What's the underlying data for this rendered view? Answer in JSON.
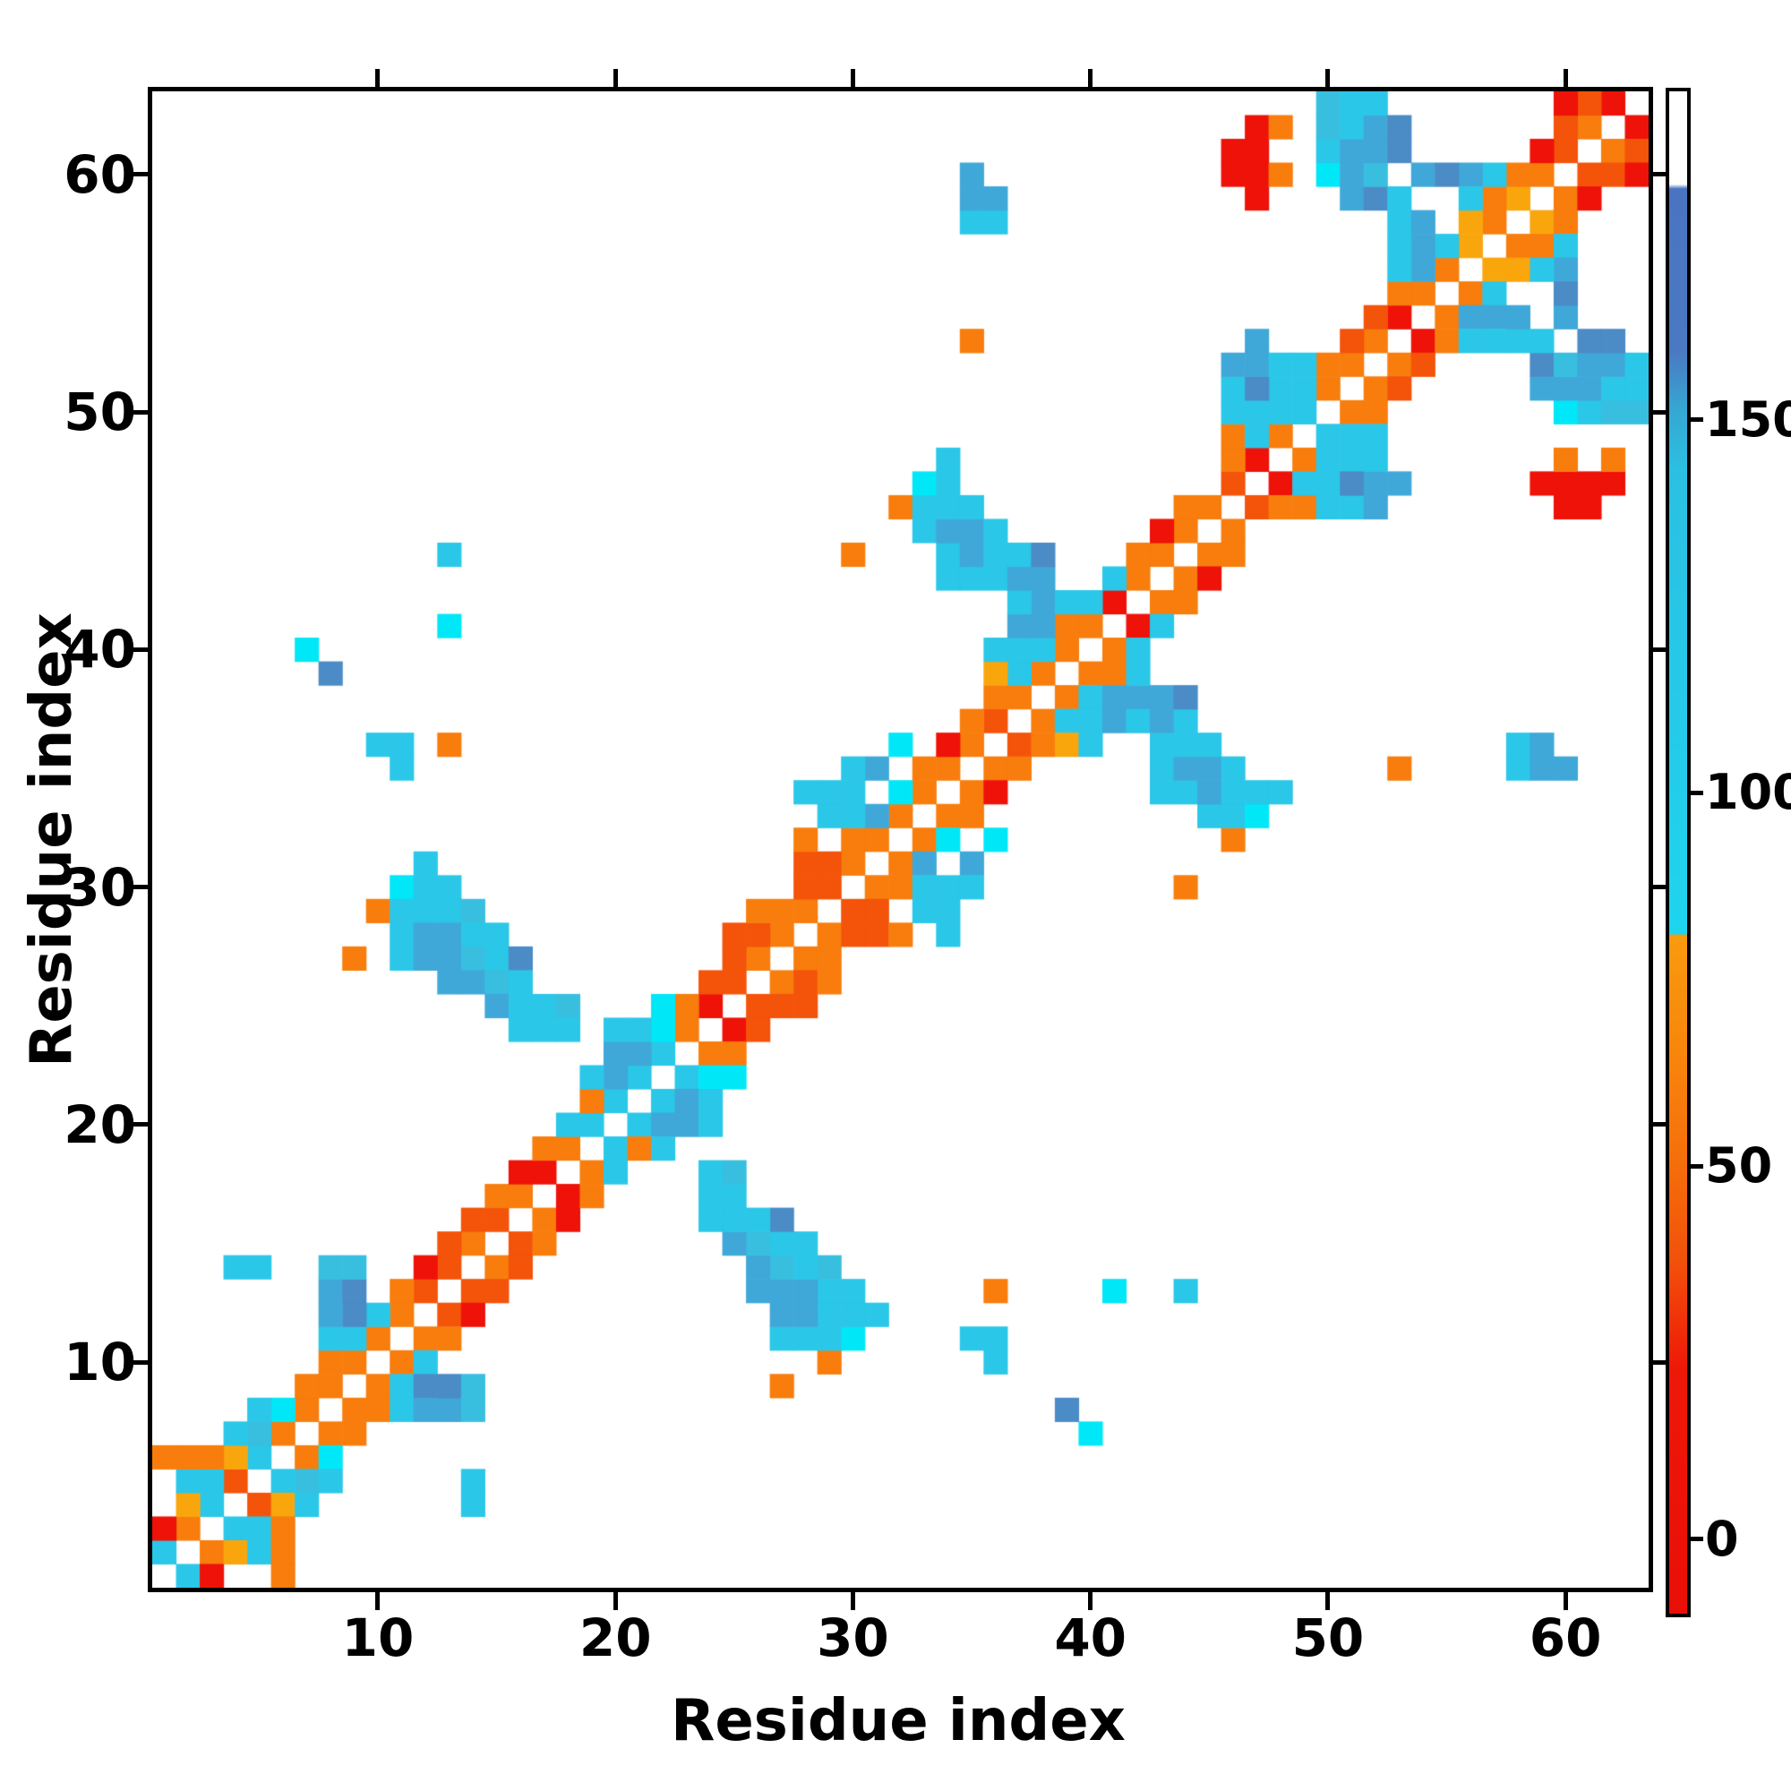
{
  "axes": {
    "xlabel": "Residue index",
    "ylabel": "Residue index",
    "x_ticks": [
      10,
      20,
      30,
      40,
      50,
      60
    ],
    "y_ticks": [
      10,
      20,
      30,
      40,
      50,
      60
    ],
    "residue_range": [
      1,
      63
    ]
  },
  "colorbar": {
    "ticks": [
      0,
      50,
      100,
      150
    ],
    "vmin": -10,
    "vmax": 194
  },
  "chart_data": {
    "type": "heatmap",
    "title": "",
    "xlabel": "Residue index",
    "ylabel": "Residue index",
    "n_residues": 63,
    "symmetric": true,
    "diagonal": "white",
    "legend_position": "right-colorbar",
    "colorbar_ticks": [
      0,
      50,
      100,
      150
    ],
    "palette": {
      "r": "#ee1208",
      "or": "#f4530a",
      "o": "#f87d0d",
      "a": "#f9a60d",
      "bc": "#00e8f8",
      "c": "#2ac7e8",
      "mc": "#38bfe0",
      "mb": "#3fa8d8",
      "sb": "#4b8bc6"
    },
    "class_values": {
      "r": 5,
      "or": 35,
      "o": 60,
      "a": 72,
      "bc": 85,
      "c": 95,
      "mc": 105,
      "mb": 125,
      "sb": 145
    },
    "cells": [
      [
        1,
        2,
        "c"
      ],
      [
        2,
        3,
        "o"
      ],
      [
        3,
        4,
        "c"
      ],
      [
        4,
        5,
        "or"
      ],
      [
        5,
        6,
        "c"
      ],
      [
        6,
        7,
        "o"
      ],
      [
        7,
        8,
        "o"
      ],
      [
        8,
        9,
        "o"
      ],
      [
        9,
        10,
        "o"
      ],
      [
        10,
        11,
        "o"
      ],
      [
        11,
        12,
        "o"
      ],
      [
        12,
        13,
        "or"
      ],
      [
        13,
        14,
        "or"
      ],
      [
        14,
        15,
        "o"
      ],
      [
        15,
        16,
        "or"
      ],
      [
        16,
        17,
        "o"
      ],
      [
        17,
        18,
        "r"
      ],
      [
        18,
        19,
        "o"
      ],
      [
        19,
        20,
        "c"
      ],
      [
        20,
        21,
        "c"
      ],
      [
        21,
        22,
        "c"
      ],
      [
        22,
        23,
        "c"
      ],
      [
        23,
        24,
        "o"
      ],
      [
        24,
        25,
        "r"
      ],
      [
        25,
        26,
        "or"
      ],
      [
        26,
        27,
        "o"
      ],
      [
        27,
        28,
        "o"
      ],
      [
        28,
        29,
        "o"
      ],
      [
        29,
        30,
        "or"
      ],
      [
        30,
        31,
        "o"
      ],
      [
        31,
        32,
        "o"
      ],
      [
        32,
        33,
        "o"
      ],
      [
        33,
        34,
        "o"
      ],
      [
        34,
        35,
        "o"
      ],
      [
        35,
        36,
        "o"
      ],
      [
        36,
        37,
        "or"
      ],
      [
        37,
        38,
        "o"
      ],
      [
        38,
        39,
        "o"
      ],
      [
        39,
        40,
        "o"
      ],
      [
        40,
        41,
        "o"
      ],
      [
        41,
        42,
        "r"
      ],
      [
        42,
        43,
        "o"
      ],
      [
        43,
        44,
        "o"
      ],
      [
        44,
        45,
        "o"
      ],
      [
        45,
        46,
        "o"
      ],
      [
        46,
        47,
        "or"
      ],
      [
        47,
        48,
        "r"
      ],
      [
        48,
        49,
        "o"
      ],
      [
        49,
        50,
        "c"
      ],
      [
        50,
        51,
        "o"
      ],
      [
        51,
        52,
        "o"
      ],
      [
        52,
        53,
        "o"
      ],
      [
        53,
        54,
        "r"
      ],
      [
        54,
        55,
        "o"
      ],
      [
        55,
        56,
        "o"
      ],
      [
        56,
        57,
        "a"
      ],
      [
        57,
        58,
        "o"
      ],
      [
        58,
        59,
        "a"
      ],
      [
        59,
        60,
        "o"
      ],
      [
        60,
        61,
        "or"
      ],
      [
        61,
        62,
        "o"
      ],
      [
        62,
        63,
        "r"
      ],
      [
        1,
        3,
        "r"
      ],
      [
        2,
        4,
        "a"
      ],
      [
        3,
        5,
        "c"
      ],
      [
        4,
        6,
        "a"
      ],
      [
        5,
        7,
        "mc"
      ],
      [
        6,
        8,
        "bc"
      ],
      [
        7,
        9,
        "o"
      ],
      [
        8,
        10,
        "o"
      ],
      [
        9,
        11,
        "c"
      ],
      [
        10,
        12,
        "c"
      ],
      [
        11,
        13,
        "o"
      ],
      [
        12,
        14,
        "r"
      ],
      [
        13,
        15,
        "or"
      ],
      [
        14,
        16,
        "or"
      ],
      [
        15,
        17,
        "o"
      ],
      [
        16,
        18,
        "r"
      ],
      [
        17,
        19,
        "o"
      ],
      [
        18,
        20,
        "c"
      ],
      [
        19,
        21,
        "o"
      ],
      [
        20,
        22,
        "mb"
      ],
      [
        21,
        23,
        "mb"
      ],
      [
        22,
        24,
        "bc"
      ],
      [
        23,
        25,
        "o"
      ],
      [
        24,
        26,
        "or"
      ],
      [
        25,
        27,
        "or"
      ],
      [
        26,
        28,
        "or"
      ],
      [
        27,
        29,
        "o"
      ],
      [
        28,
        30,
        "or"
      ],
      [
        29,
        31,
        "or"
      ],
      [
        30,
        32,
        "o"
      ],
      [
        31,
        33,
        "mb"
      ],
      [
        32,
        34,
        "bc"
      ],
      [
        33,
        35,
        "o"
      ],
      [
        34,
        36,
        "r"
      ],
      [
        35,
        37,
        "o"
      ],
      [
        36,
        38,
        "o"
      ],
      [
        37,
        39,
        "c"
      ],
      [
        38,
        40,
        "c"
      ],
      [
        39,
        41,
        "o"
      ],
      [
        40,
        42,
        "c"
      ],
      [
        41,
        43,
        "c"
      ],
      [
        42,
        44,
        "o"
      ],
      [
        43,
        45,
        "r"
      ],
      [
        44,
        46,
        "o"
      ],
      [
        46,
        48,
        "o"
      ],
      [
        48,
        50,
        "c"
      ],
      [
        49,
        51,
        "c"
      ],
      [
        50,
        52,
        "o"
      ],
      [
        51,
        53,
        "or"
      ],
      [
        52,
        54,
        "or"
      ],
      [
        53,
        55,
        "o"
      ],
      [
        54,
        56,
        "mb"
      ],
      [
        55,
        57,
        "c"
      ],
      [
        57,
        59,
        "o"
      ],
      [
        58,
        60,
        "o"
      ],
      [
        59,
        61,
        "r"
      ],
      [
        60,
        62,
        "or"
      ],
      [
        61,
        63,
        "or"
      ],
      [
        2,
        5,
        "c"
      ],
      [
        3,
        6,
        "o"
      ],
      [
        4,
        7,
        "c"
      ],
      [
        5,
        8,
        "c"
      ],
      [
        8,
        11,
        "c"
      ],
      [
        9,
        12,
        "sb"
      ],
      [
        19,
        22,
        "c"
      ],
      [
        20,
        23,
        "mb"
      ],
      [
        21,
        24,
        "c"
      ],
      [
        22,
        25,
        "bc"
      ],
      [
        25,
        28,
        "or"
      ],
      [
        26,
        29,
        "o"
      ],
      [
        28,
        31,
        "or"
      ],
      [
        36,
        39,
        "a"
      ],
      [
        37,
        40,
        "c"
      ],
      [
        38,
        41,
        "mb"
      ],
      [
        46,
        49,
        "o"
      ],
      [
        47,
        50,
        "c"
      ],
      [
        48,
        51,
        "c"
      ],
      [
        53,
        56,
        "c"
      ],
      [
        54,
        57,
        "mb"
      ],
      [
        57,
        60,
        "c"
      ],
      [
        60,
        63,
        "r"
      ],
      [
        2,
        6,
        "o"
      ],
      [
        20,
        24,
        "c"
      ],
      [
        28,
        32,
        "o"
      ],
      [
        30,
        34,
        "c"
      ],
      [
        31,
        35,
        "mb"
      ],
      [
        32,
        36,
        "bc"
      ],
      [
        36,
        40,
        "c"
      ],
      [
        37,
        41,
        "mb"
      ],
      [
        38,
        42,
        "mb"
      ],
      [
        56,
        60,
        "mb"
      ],
      [
        8,
        12,
        "mb"
      ],
      [
        8,
        13,
        "mb"
      ],
      [
        9,
        13,
        "sb"
      ],
      [
        8,
        14,
        "mc"
      ],
      [
        9,
        14,
        "mc"
      ],
      [
        12,
        31,
        "c"
      ],
      [
        11,
        30,
        "bc"
      ],
      [
        12,
        30,
        "c"
      ],
      [
        13,
        30,
        "c"
      ],
      [
        10,
        29,
        "o"
      ],
      [
        11,
        29,
        "c"
      ],
      [
        12,
        29,
        "c"
      ],
      [
        13,
        29,
        "c"
      ],
      [
        14,
        29,
        "mc"
      ],
      [
        11,
        28,
        "c"
      ],
      [
        12,
        28,
        "mb"
      ],
      [
        13,
        28,
        "mb"
      ],
      [
        14,
        28,
        "c"
      ],
      [
        15,
        28,
        "c"
      ],
      [
        11,
        27,
        "c"
      ],
      [
        12,
        27,
        "mb"
      ],
      [
        13,
        27,
        "mb"
      ],
      [
        14,
        27,
        "mc"
      ],
      [
        15,
        27,
        "c"
      ],
      [
        16,
        27,
        "sb"
      ],
      [
        13,
        26,
        "mb"
      ],
      [
        14,
        26,
        "mb"
      ],
      [
        15,
        26,
        "mc"
      ],
      [
        16,
        26,
        "c"
      ],
      [
        15,
        25,
        "mb"
      ],
      [
        16,
        25,
        "c"
      ],
      [
        17,
        25,
        "c"
      ],
      [
        18,
        25,
        "mc"
      ],
      [
        16,
        24,
        "c"
      ],
      [
        17,
        24,
        "c"
      ],
      [
        18,
        24,
        "c"
      ],
      [
        29,
        33,
        "c"
      ],
      [
        30,
        33,
        "c"
      ],
      [
        29,
        34,
        "c"
      ],
      [
        30,
        35,
        "c"
      ],
      [
        28,
        34,
        "c"
      ],
      [
        32,
        46,
        "o"
      ],
      [
        33,
        45,
        "c"
      ],
      [
        33,
        46,
        "c"
      ],
      [
        33,
        47,
        "bc"
      ],
      [
        34,
        43,
        "c"
      ],
      [
        34,
        44,
        "c"
      ],
      [
        34,
        45,
        "mb"
      ],
      [
        34,
        46,
        "c"
      ],
      [
        34,
        47,
        "c"
      ],
      [
        34,
        48,
        "c"
      ],
      [
        35,
        43,
        "c"
      ],
      [
        35,
        44,
        "mb"
      ],
      [
        35,
        45,
        "mb"
      ],
      [
        35,
        46,
        "c"
      ],
      [
        36,
        43,
        "c"
      ],
      [
        36,
        44,
        "c"
      ],
      [
        36,
        45,
        "c"
      ],
      [
        37,
        42,
        "c"
      ],
      [
        37,
        43,
        "mb"
      ],
      [
        37,
        44,
        "c"
      ],
      [
        38,
        43,
        "mb"
      ],
      [
        38,
        44,
        "sb"
      ],
      [
        39,
        42,
        "c"
      ],
      [
        30,
        44,
        "o"
      ],
      [
        46,
        50,
        "c"
      ],
      [
        46,
        51,
        "c"
      ],
      [
        46,
        52,
        "mb"
      ],
      [
        47,
        49,
        "c"
      ],
      [
        47,
        51,
        "sb"
      ],
      [
        47,
        52,
        "mb"
      ],
      [
        47,
        53,
        "mb"
      ],
      [
        48,
        52,
        "c"
      ],
      [
        49,
        52,
        "c"
      ],
      [
        50,
        60,
        "bc"
      ],
      [
        50,
        61,
        "c"
      ],
      [
        50,
        62,
        "mc"
      ],
      [
        50,
        63,
        "mc"
      ],
      [
        51,
        59,
        "mb"
      ],
      [
        51,
        60,
        "mb"
      ],
      [
        51,
        61,
        "mb"
      ],
      [
        51,
        62,
        "c"
      ],
      [
        51,
        63,
        "c"
      ],
      [
        52,
        59,
        "sb"
      ],
      [
        52,
        60,
        "mc"
      ],
      [
        52,
        61,
        "mb"
      ],
      [
        52,
        62,
        "mb"
      ],
      [
        52,
        63,
        "c"
      ],
      [
        53,
        57,
        "c"
      ],
      [
        53,
        58,
        "c"
      ],
      [
        53,
        59,
        "c"
      ],
      [
        53,
        61,
        "sb"
      ],
      [
        53,
        62,
        "sb"
      ],
      [
        54,
        58,
        "mb"
      ],
      [
        54,
        60,
        "mb"
      ],
      [
        55,
        60,
        "sb"
      ],
      [
        56,
        58,
        "a"
      ],
      [
        56,
        59,
        "c"
      ],
      [
        47,
        59,
        "r"
      ],
      [
        46,
        60,
        "r"
      ],
      [
        47,
        60,
        "r"
      ],
      [
        48,
        60,
        "o"
      ],
      [
        46,
        61,
        "r"
      ],
      [
        47,
        61,
        "r"
      ],
      [
        47,
        62,
        "r"
      ],
      [
        48,
        62,
        "o"
      ],
      [
        1,
        6,
        "o"
      ],
      [
        4,
        14,
        "c"
      ],
      [
        5,
        14,
        "c"
      ],
      [
        7,
        40,
        "bc"
      ],
      [
        8,
        39,
        "sb"
      ],
      [
        9,
        27,
        "o"
      ],
      [
        10,
        36,
        "c"
      ],
      [
        11,
        35,
        "c"
      ],
      [
        11,
        36,
        "c"
      ],
      [
        13,
        36,
        "o"
      ],
      [
        13,
        41,
        "bc"
      ],
      [
        13,
        44,
        "c"
      ],
      [
        35,
        53,
        "o"
      ],
      [
        35,
        58,
        "c"
      ],
      [
        36,
        58,
        "c"
      ],
      [
        35,
        59,
        "mb"
      ],
      [
        36,
        59,
        "mb"
      ],
      [
        35,
        60,
        "mb"
      ]
    ]
  }
}
